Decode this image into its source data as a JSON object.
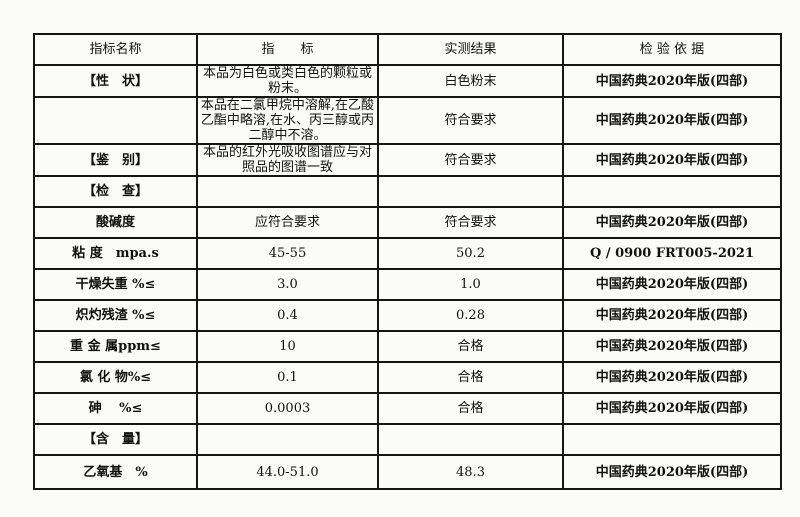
{
  "headers": [
    "指标名称",
    "指　　标",
    "实测结果",
    "检 验 依 据"
  ],
  "rows": [
    {
      "name": "【性　状】",
      "spec": "本品为白色或类白色的颗粒或粉末。",
      "result": "白色粉末",
      "basis": "中国药典2020年版(四部)"
    },
    {
      "name": "",
      "spec": "本品在二氯甲烷中溶解,在乙酸乙酯中略溶,在水、丙三醇或丙二醇中不溶。",
      "result": "符合要求",
      "basis": "中国药典2020年版(四部)"
    },
    {
      "name": "【鉴　别】",
      "spec": "本品的红外光吸收图谱应与对照品的图谱一致",
      "result": "符合要求",
      "basis": "中国药典2020年版(四部)"
    },
    {
      "name": "【检　查】",
      "spec": "",
      "result": "",
      "basis": ""
    },
    {
      "name": "酸碱度",
      "spec": "应符合要求",
      "result": "符合要求",
      "basis": "中国药典2020年版(四部)"
    },
    {
      "name": "粘 度　mpa.s",
      "spec": "45-55",
      "result": "50.2",
      "basis": "Q / 0900 FRT005-2021"
    },
    {
      "name": "干燥失重 %≤",
      "spec": "3.0",
      "result": "1.0",
      "basis": "中国药典2020年版(四部)"
    },
    {
      "name": "炽灼残渣 %≤",
      "spec": "0.4",
      "result": "0.28",
      "basis": "中国药典2020年版(四部)"
    },
    {
      "name": "重 金 属ppm≤",
      "spec": "10",
      "result": "合格",
      "basis": "中国药典2020年版(四部)"
    },
    {
      "name": "氯 化 物%≤",
      "spec": "0.1",
      "result": "合格",
      "basis": "中国药典2020年版(四部)"
    },
    {
      "name": "砷　 %≤",
      "spec": "0.0003",
      "result": "合格",
      "basis": "中国药典2020年版(四部)"
    },
    {
      "name": "【含　量】",
      "spec": "",
      "result": "",
      "basis": ""
    },
    {
      "name": "乙氧基　%",
      "spec": "44.0-51.0",
      "result": "48.3",
      "basis": "中国药典2020年版(四部)"
    }
  ]
}
